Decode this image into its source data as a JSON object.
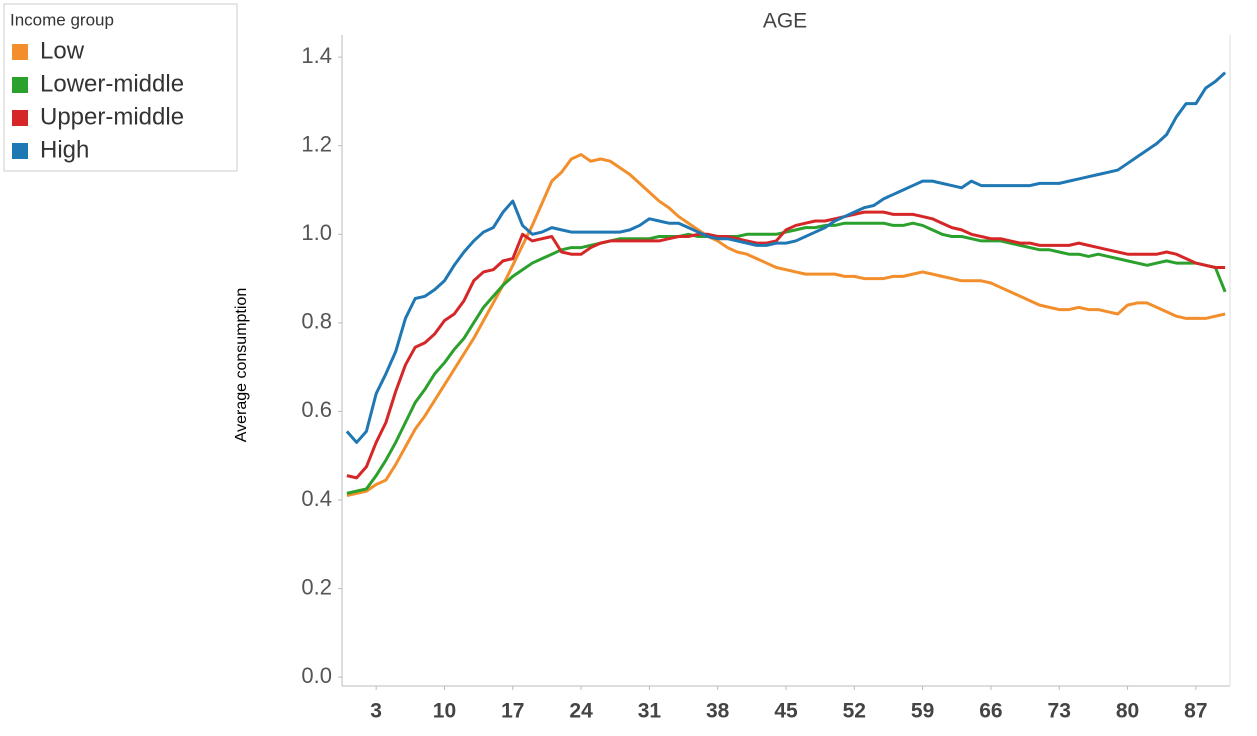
{
  "chart_data": {
    "type": "line",
    "title": "AGE",
    "y_label": "Average consumption",
    "legend_title": "Income group",
    "x": [
      0,
      1,
      2,
      3,
      4,
      5,
      6,
      7,
      8,
      9,
      10,
      11,
      12,
      13,
      14,
      15,
      16,
      17,
      18,
      19,
      20,
      21,
      22,
      23,
      24,
      25,
      26,
      27,
      28,
      29,
      30,
      31,
      32,
      33,
      34,
      35,
      36,
      37,
      38,
      39,
      40,
      41,
      42,
      43,
      44,
      45,
      46,
      47,
      48,
      49,
      50,
      51,
      52,
      53,
      54,
      55,
      56,
      57,
      58,
      59,
      60,
      61,
      62,
      63,
      64,
      65,
      66,
      67,
      68,
      69,
      70,
      71,
      72,
      73,
      74,
      75,
      76,
      77,
      78,
      79,
      80,
      81,
      82,
      83,
      84,
      85,
      86,
      87,
      88,
      89,
      90
    ],
    "xlim": [
      -0.5,
      90.5
    ],
    "xticks": [
      3,
      10,
      17,
      24,
      31,
      38,
      45,
      52,
      59,
      66,
      73,
      80,
      87
    ],
    "ylim": [
      -0.02,
      1.45
    ],
    "yticks": [
      {
        "value": 0,
        "label": "0.0"
      },
      0.2,
      0.4,
      0.6,
      0.8,
      {
        "value": 1,
        "label": "1.0"
      },
      1.2,
      1.4
    ],
    "series": [
      {
        "name": "Low",
        "color": "#f28e2b",
        "values": [
          0.41,
          0.415,
          0.42,
          0.435,
          0.445,
          0.48,
          0.52,
          0.56,
          0.59,
          0.625,
          0.66,
          0.695,
          0.73,
          0.765,
          0.805,
          0.845,
          0.885,
          0.93,
          0.975,
          1.02,
          1.07,
          1.12,
          1.14,
          1.17,
          1.18,
          1.165,
          1.17,
          1.165,
          1.15,
          1.135,
          1.115,
          1.095,
          1.075,
          1.06,
          1.04,
          1.025,
          1.01,
          0.995,
          0.985,
          0.97,
          0.96,
          0.955,
          0.945,
          0.935,
          0.925,
          0.92,
          0.915,
          0.91,
          0.91,
          0.91,
          0.91,
          0.905,
          0.905,
          0.9,
          0.9,
          0.9,
          0.905,
          0.905,
          0.91,
          0.915,
          0.91,
          0.905,
          0.9,
          0.895,
          0.895,
          0.895,
          0.89,
          0.88,
          0.87,
          0.86,
          0.85,
          0.84,
          0.835,
          0.83,
          0.83,
          0.835,
          0.83,
          0.83,
          0.825,
          0.82,
          0.84,
          0.845,
          0.845,
          0.835,
          0.825,
          0.815,
          0.81,
          0.81,
          0.81,
          0.815,
          0.82
        ]
      },
      {
        "name": "Lower-middle",
        "color": "#2ca02c",
        "values": [
          0.415,
          0.42,
          0.425,
          0.455,
          0.49,
          0.53,
          0.575,
          0.62,
          0.65,
          0.685,
          0.71,
          0.74,
          0.765,
          0.8,
          0.835,
          0.86,
          0.885,
          0.905,
          0.92,
          0.935,
          0.945,
          0.955,
          0.965,
          0.97,
          0.97,
          0.975,
          0.98,
          0.985,
          0.99,
          0.99,
          0.99,
          0.99,
          0.995,
          0.995,
          0.995,
          1.0,
          0.995,
          0.995,
          0.995,
          0.995,
          0.995,
          1.0,
          1.0,
          1.0,
          1.0,
          1.005,
          1.01,
          1.015,
          1.015,
          1.02,
          1.02,
          1.025,
          1.025,
          1.025,
          1.025,
          1.025,
          1.02,
          1.02,
          1.025,
          1.02,
          1.01,
          1.0,
          0.995,
          0.995,
          0.99,
          0.985,
          0.985,
          0.985,
          0.98,
          0.975,
          0.97,
          0.965,
          0.965,
          0.96,
          0.955,
          0.955,
          0.95,
          0.955,
          0.95,
          0.945,
          0.94,
          0.935,
          0.93,
          0.935,
          0.94,
          0.935,
          0.935,
          0.935,
          0.93,
          0.925,
          0.87
        ]
      },
      {
        "name": "Upper-middle",
        "color": "#d62728",
        "values": [
          0.455,
          0.45,
          0.475,
          0.53,
          0.575,
          0.645,
          0.705,
          0.745,
          0.755,
          0.775,
          0.805,
          0.82,
          0.85,
          0.895,
          0.915,
          0.92,
          0.94,
          0.945,
          1.0,
          0.985,
          0.99,
          0.995,
          0.96,
          0.955,
          0.955,
          0.97,
          0.98,
          0.985,
          0.985,
          0.985,
          0.985,
          0.985,
          0.985,
          0.99,
          0.995,
          0.995,
          1.0,
          1.0,
          0.995,
          0.995,
          0.99,
          0.985,
          0.98,
          0.98,
          0.985,
          1.01,
          1.02,
          1.025,
          1.03,
          1.03,
          1.035,
          1.04,
          1.045,
          1.05,
          1.05,
          1.05,
          1.045,
          1.045,
          1.045,
          1.04,
          1.035,
          1.025,
          1.015,
          1.01,
          1.0,
          0.995,
          0.99,
          0.99,
          0.985,
          0.98,
          0.98,
          0.975,
          0.975,
          0.975,
          0.975,
          0.98,
          0.975,
          0.97,
          0.965,
          0.96,
          0.955,
          0.955,
          0.955,
          0.955,
          0.96,
          0.955,
          0.945,
          0.935,
          0.93,
          0.925,
          0.925
        ]
      },
      {
        "name": "High",
        "color": "#1f77b4",
        "values": [
          0.555,
          0.53,
          0.555,
          0.64,
          0.685,
          0.735,
          0.81,
          0.855,
          0.86,
          0.875,
          0.895,
          0.93,
          0.96,
          0.985,
          1.005,
          1.015,
          1.05,
          1.075,
          1.02,
          1.0,
          1.005,
          1.015,
          1.01,
          1.005,
          1.005,
          1.005,
          1.005,
          1.005,
          1.005,
          1.01,
          1.02,
          1.035,
          1.03,
          1.025,
          1.025,
          1.015,
          1.005,
          0.995,
          0.99,
          0.99,
          0.985,
          0.98,
          0.975,
          0.975,
          0.98,
          0.98,
          0.985,
          0.995,
          1.005,
          1.015,
          1.03,
          1.04,
          1.05,
          1.06,
          1.065,
          1.08,
          1.09,
          1.1,
          1.11,
          1.12,
          1.12,
          1.115,
          1.11,
          1.105,
          1.12,
          1.11,
          1.11,
          1.11,
          1.11,
          1.11,
          1.11,
          1.115,
          1.115,
          1.115,
          1.12,
          1.125,
          1.13,
          1.135,
          1.14,
          1.145,
          1.16,
          1.175,
          1.19,
          1.205,
          1.225,
          1.265,
          1.295,
          1.295,
          1.33,
          1.345,
          1.365
        ]
      }
    ]
  }
}
